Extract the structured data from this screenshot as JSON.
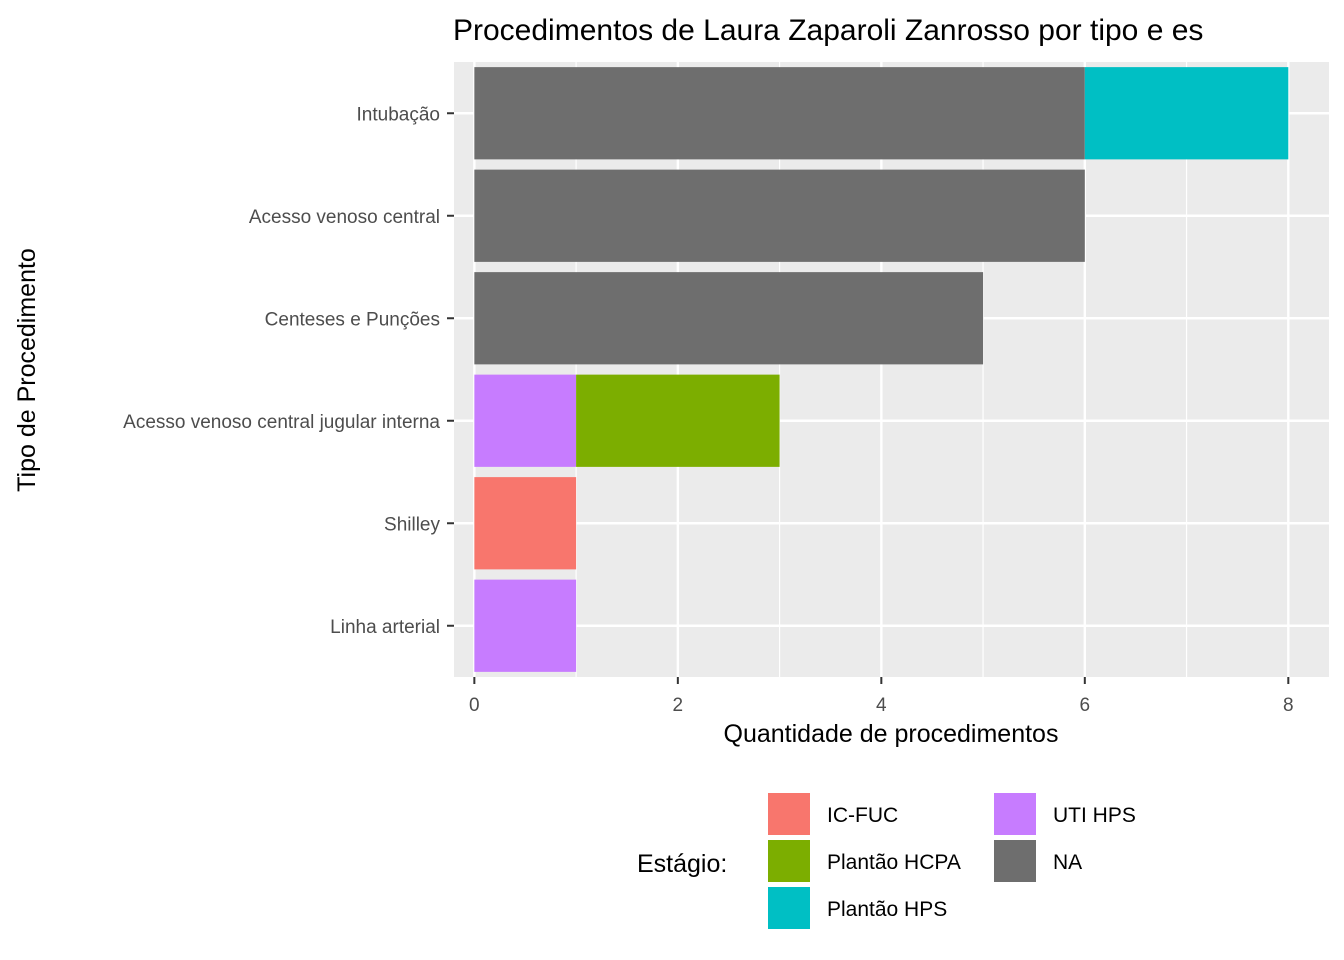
{
  "chart_data": {
    "type": "bar",
    "orientation": "horizontal",
    "stacked": true,
    "title": "Procedimentos de  Laura Zaparoli Zanrosso por tipo e es",
    "xlabel": "Quantidade de procedimentos",
    "ylabel": "Tipo de Procedimento",
    "xlim": [
      -0.2,
      8.4
    ],
    "xticks": [
      0,
      2,
      4,
      6,
      8
    ],
    "grid": true,
    "categories": [
      "Intubação",
      "Acesso venoso central",
      "Centeses e Punções",
      "Acesso venoso central jugular interna",
      "Shilley",
      "Linha arterial"
    ],
    "series": [
      {
        "name": "IC-FUC",
        "color": "#F8766D",
        "values": [
          0,
          0,
          0,
          0,
          1,
          0
        ]
      },
      {
        "name": "UTI HPS",
        "color": "#C77CFF",
        "values": [
          0,
          0,
          0,
          1,
          0,
          1
        ]
      },
      {
        "name": "Plantão HCPA",
        "color": "#7CAE00",
        "values": [
          0,
          0,
          0,
          2,
          0,
          0
        ]
      },
      {
        "name": "NA",
        "color": "#6E6E6E",
        "values": [
          6,
          6,
          5,
          0,
          0,
          0
        ]
      },
      {
        "name": "Plantão HPS",
        "color": "#00BFC4",
        "values": [
          2,
          0,
          0,
          0,
          0,
          0
        ]
      }
    ],
    "legend": {
      "title": "Estágio:",
      "position": "bottom",
      "columns": [
        [
          "IC-FUC",
          "Plantão HCPA",
          "Plantão HPS"
        ],
        [
          "UTI HPS",
          "NA"
        ]
      ]
    }
  }
}
